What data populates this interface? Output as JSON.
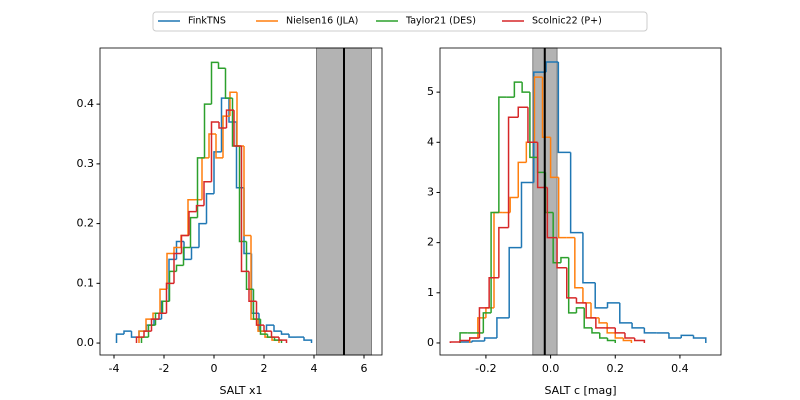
{
  "chart_data": [
    {
      "type": "histogram",
      "xlabel": "SALT x1",
      "xlim": [
        -4.56,
        6.72
      ],
      "ylim": [
        -0.02,
        0.494
      ],
      "xticks": [
        -4,
        -2,
        0,
        2,
        4,
        6
      ],
      "yticks": [
        {
          "value": 0,
          "label": "0.0"
        },
        {
          "value": 0.1,
          "label": "0.1"
        },
        {
          "value": 0.2,
          "label": "0.2"
        },
        {
          "value": 0.3,
          "label": "0.3"
        },
        {
          "value": 0.4,
          "label": "0.4"
        }
      ],
      "band": [
        4.1,
        6.3
      ],
      "vline": 5.2,
      "series": [
        {
          "name": "FinkTNS",
          "color": "#1f77b4",
          "bins": [
            -3.9,
            -3.6,
            -3.3,
            -3.0,
            -2.7,
            -2.4,
            -2.1,
            -1.8,
            -1.5,
            -1.2,
            -0.9,
            -0.6,
            -0.3,
            0,
            0.3,
            0.6,
            0.9,
            1.2,
            1.5,
            1.8,
            2.1,
            2.4,
            2.7,
            3.0,
            3.3,
            3.6,
            3.9
          ],
          "values": [
            0.015,
            0.02,
            0.01,
            0.02,
            0.03,
            0.04,
            0.07,
            0.14,
            0.17,
            0.14,
            0.16,
            0.2,
            0.25,
            0.32,
            0.41,
            0.37,
            0.26,
            0.15,
            0.05,
            0.02,
            0.03,
            0.02,
            0.015,
            0.01,
            0.01,
            0.005
          ]
        },
        {
          "name": "Nielsen16 (JLA)",
          "color": "#ff7f0e",
          "bins": [
            -3.0,
            -2.72,
            -2.44,
            -2.16,
            -1.88,
            -1.6,
            -1.32,
            -1.04,
            -0.76,
            -0.48,
            -0.2,
            0.08,
            0.36,
            0.64,
            0.92,
            1.2,
            1.48,
            1.76,
            2.04,
            2.32,
            2.6
          ],
          "values": [
            0.02,
            0.04,
            0.05,
            0.09,
            0.15,
            0.16,
            0.18,
            0.24,
            0.24,
            0.31,
            0.35,
            0.31,
            0.38,
            0.42,
            0.33,
            0.18,
            0.04,
            0.02,
            0.01,
            0.005
          ]
        },
        {
          "name": "Taylor21 (DES)",
          "color": "#2ca02c",
          "bins": [
            -2.9,
            -2.62,
            -2.34,
            -2.06,
            -1.78,
            -1.5,
            -1.22,
            -0.94,
            -0.66,
            -0.38,
            -0.1,
            0.18,
            0.46,
            0.74,
            1.02,
            1.3,
            1.58,
            1.86,
            2.14,
            2.42,
            2.7
          ],
          "values": [
            0.01,
            0.03,
            0.05,
            0.07,
            0.12,
            0.13,
            0.16,
            0.21,
            0.31,
            0.4,
            0.47,
            0.46,
            0.41,
            0.33,
            0.17,
            0.09,
            0.04,
            0.015,
            0.01,
            0.005
          ]
        },
        {
          "name": "Scolnic22 (P+)",
          "color": "#d62728",
          "bins": [
            -3.1,
            -2.8,
            -2.5,
            -2.2,
            -1.9,
            -1.6,
            -1.3,
            -1.0,
            -0.7,
            -0.4,
            -0.1,
            0.2,
            0.5,
            0.8,
            1.1,
            1.4,
            1.7,
            2.0,
            2.3,
            2.6,
            2.9
          ],
          "values": [
            0.01,
            0.02,
            0.04,
            0.05,
            0.1,
            0.15,
            0.18,
            0.22,
            0.23,
            0.27,
            0.37,
            0.36,
            0.39,
            0.33,
            0.12,
            0.07,
            0.03,
            0.02,
            0.01,
            0.005
          ]
        }
      ]
    },
    {
      "type": "histogram",
      "xlabel": "SALT c [mag]",
      "xlim": [
        -0.342,
        0.527
      ],
      "ylim": [
        -0.24,
        5.88
      ],
      "xticks": [
        -0.2,
        {
          "value": 0,
          "label": "0.0"
        },
        0.2,
        0.4
      ],
      "yticks": [
        0,
        1,
        2,
        3,
        4,
        5
      ],
      "band": [
        -0.055,
        0.02
      ],
      "vline": -0.018,
      "series": [
        {
          "color": "#1f77b4",
          "bins": [
            -0.28,
            -0.242,
            -0.204,
            -0.166,
            -0.128,
            -0.09,
            -0.052,
            -0.014,
            0.024,
            0.062,
            0.1,
            0.138,
            0.176,
            0.214,
            0.252,
            0.29,
            0.328,
            0.366,
            0.404,
            0.442,
            0.48
          ],
          "values": [
            0.02,
            0.04,
            0.1,
            0.5,
            1.9,
            3.2,
            5.4,
            5.6,
            3.8,
            2.2,
            1.2,
            0.7,
            0.8,
            0.4,
            0.3,
            0.2,
            0.2,
            0.1,
            0.15,
            0.1
          ]
        },
        {
          "color": "#ff7f0e",
          "bins": [
            -0.25,
            -0.225,
            -0.2,
            -0.175,
            -0.15,
            -0.125,
            -0.1,
            -0.075,
            -0.05,
            -0.025,
            0,
            0.025,
            0.05,
            0.075,
            0.1,
            0.125,
            0.15,
            0.175,
            0.2,
            0.225,
            0.25
          ],
          "values": [
            0.1,
            0.5,
            0.7,
            2.6,
            2.6,
            2.9,
            3.6,
            4.0,
            5.3,
            4.1,
            3.3,
            2.1,
            2.1,
            1.1,
            0.8,
            0.5,
            0.4,
            0.2,
            0.1,
            0.05
          ]
        },
        {
          "color": "#2ca02c",
          "bins": [
            -0.28,
            -0.256,
            -0.232,
            -0.208,
            -0.184,
            -0.16,
            -0.136,
            -0.112,
            -0.088,
            -0.064,
            -0.04,
            -0.016,
            0.008,
            0.032,
            0.056,
            0.08,
            0.104,
            0.128,
            0.152,
            0.176,
            0.2
          ],
          "values": [
            0.2,
            0.2,
            0.2,
            0.6,
            2.6,
            4.9,
            4.9,
            5.2,
            5.0,
            3.7,
            3.4,
            2.6,
            1.6,
            1.7,
            0.6,
            0.7,
            0.3,
            0.2,
            0.1,
            0.05
          ]
        },
        {
          "color": "#d62728",
          "bins": [
            -0.31,
            -0.28,
            -0.25,
            -0.22,
            -0.19,
            -0.16,
            -0.13,
            -0.1,
            -0.07,
            -0.04,
            -0.01,
            0.02,
            0.05,
            0.08,
            0.11,
            0.14,
            0.17,
            0.2,
            0.23,
            0.26,
            0.29
          ],
          "values": [
            0.02,
            0.05,
            0.1,
            0.7,
            1.3,
            2.3,
            4.5,
            4.7,
            4.0,
            3.1,
            2.1,
            1.5,
            0.9,
            0.8,
            0.5,
            0.3,
            0.3,
            0.2,
            0.1,
            0.05
          ]
        }
      ]
    }
  ]
}
